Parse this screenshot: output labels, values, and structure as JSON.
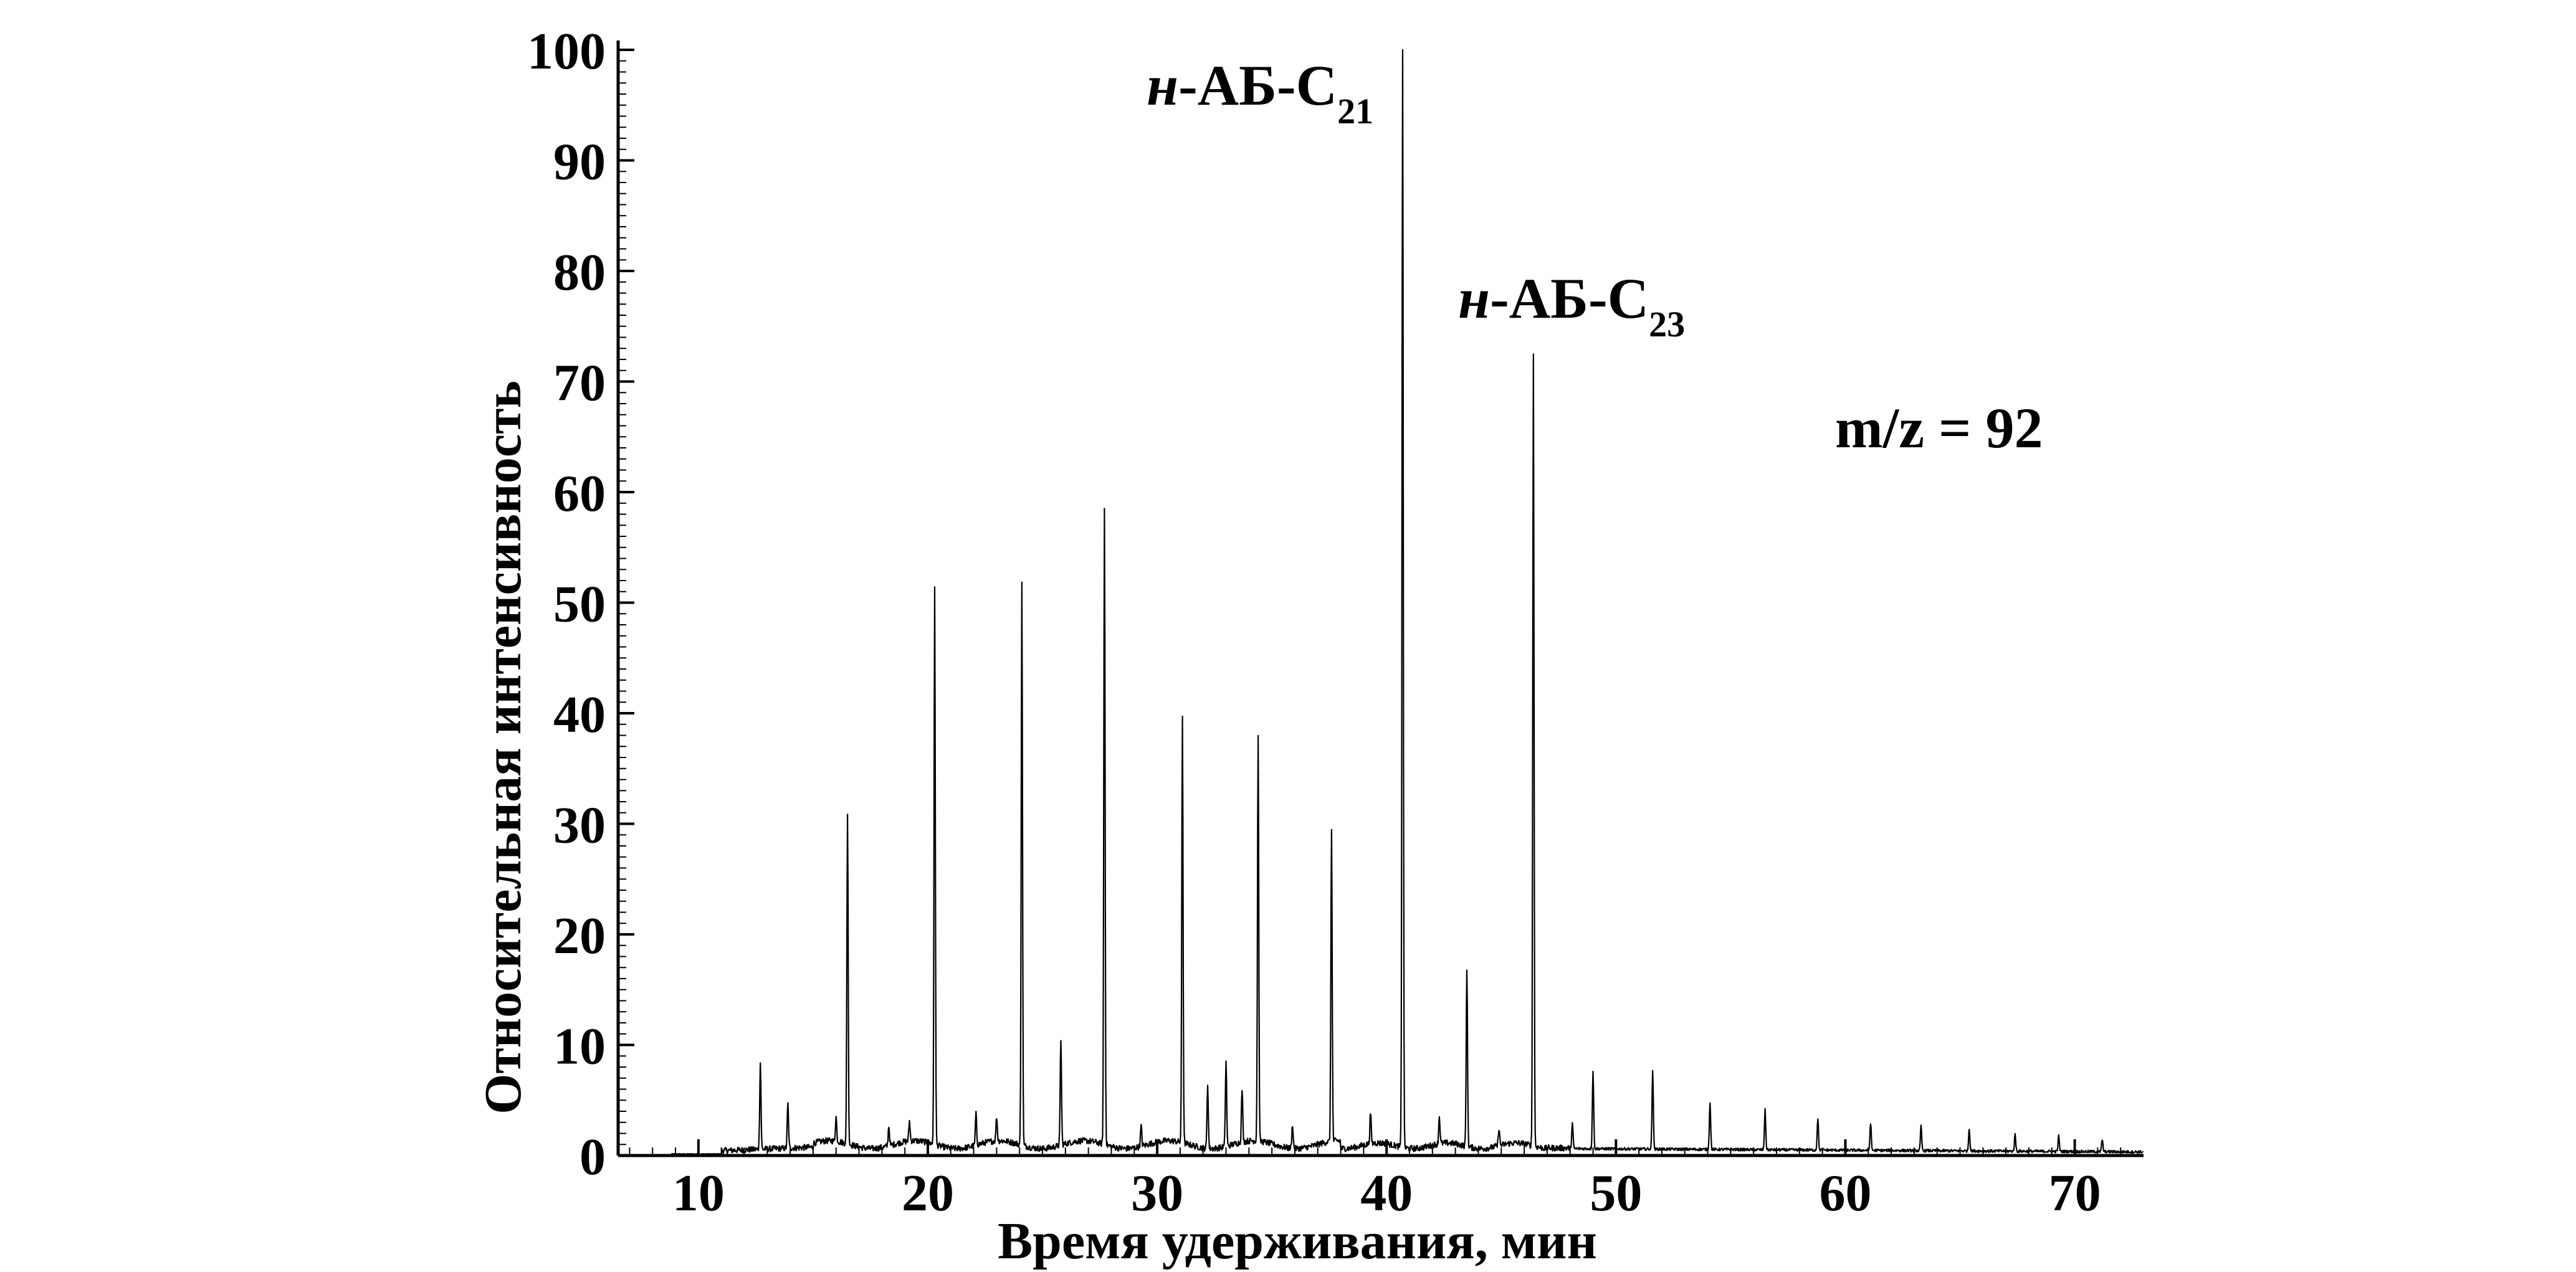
{
  "chart_data": {
    "type": "line",
    "xlabel": "Время удерживания, мин",
    "ylabel": "Относительная интенсивность",
    "xlim": [
      6.5,
      73
    ],
    "ylim": [
      0,
      100
    ],
    "xticks": [
      "10",
      "20",
      "30",
      "40",
      "50",
      "60",
      "70"
    ],
    "xtick_values": [
      10,
      20,
      30,
      40,
      50,
      60,
      70
    ],
    "yticks": [
      "0",
      "10",
      "20",
      "30",
      "40",
      "50",
      "60",
      "70",
      "80",
      "90",
      "100"
    ],
    "ytick_values": [
      0,
      10,
      20,
      30,
      40,
      50,
      60,
      70,
      80,
      90,
      100
    ],
    "grid": false,
    "line_color": "#000000",
    "annotations": [
      {
        "prefix": "н",
        "main": "-АБ-С",
        "sub": "21",
        "x": 40.7,
        "y": 100
      },
      {
        "prefix": "н",
        "main": "-АБ-С",
        "sub": "23",
        "x": 46.4,
        "y": 71.5
      },
      {
        "text": "m/z = 92"
      }
    ],
    "peaks": [
      {
        "x": 12.7,
        "y": 7.8
      },
      {
        "x": 13.9,
        "y": 4.0
      },
      {
        "x": 16.0,
        "y": 2.2
      },
      {
        "x": 16.5,
        "y": 29.8
      },
      {
        "x": 18.3,
        "y": 1.8
      },
      {
        "x": 19.2,
        "y": 1.8
      },
      {
        "x": 20.3,
        "y": 50.3
      },
      {
        "x": 22.1,
        "y": 2.8
      },
      {
        "x": 23.0,
        "y": 2.2
      },
      {
        "x": 24.1,
        "y": 51.0
      },
      {
        "x": 25.8,
        "y": 9.6
      },
      {
        "x": 27.7,
        "y": 57.6
      },
      {
        "x": 29.3,
        "y": 1.8
      },
      {
        "x": 31.1,
        "y": 38.6
      },
      {
        "x": 32.2,
        "y": 5.8
      },
      {
        "x": 33.0,
        "y": 7.7
      },
      {
        "x": 33.7,
        "y": 4.8
      },
      {
        "x": 34.4,
        "y": 36.6
      },
      {
        "x": 35.9,
        "y": 2.2
      },
      {
        "x": 37.6,
        "y": 28.2
      },
      {
        "x": 39.3,
        "y": 2.8
      },
      {
        "x": 40.7,
        "y": 100.0
      },
      {
        "x": 42.3,
        "y": 2.5
      },
      {
        "x": 43.5,
        "y": 16.2
      },
      {
        "x": 44.9,
        "y": 1.6
      },
      {
        "x": 46.4,
        "y": 71.5
      },
      {
        "x": 48.1,
        "y": 2.3
      },
      {
        "x": 49.0,
        "y": 7.1
      },
      {
        "x": 51.6,
        "y": 7.2
      },
      {
        "x": 54.1,
        "y": 4.3
      },
      {
        "x": 56.5,
        "y": 3.6
      },
      {
        "x": 58.8,
        "y": 2.9
      },
      {
        "x": 61.1,
        "y": 2.5
      },
      {
        "x": 63.3,
        "y": 2.2
      },
      {
        "x": 65.4,
        "y": 2.0
      },
      {
        "x": 67.4,
        "y": 1.5
      },
      {
        "x": 69.3,
        "y": 1.4
      },
      {
        "x": 71.2,
        "y": 1.1
      }
    ]
  }
}
